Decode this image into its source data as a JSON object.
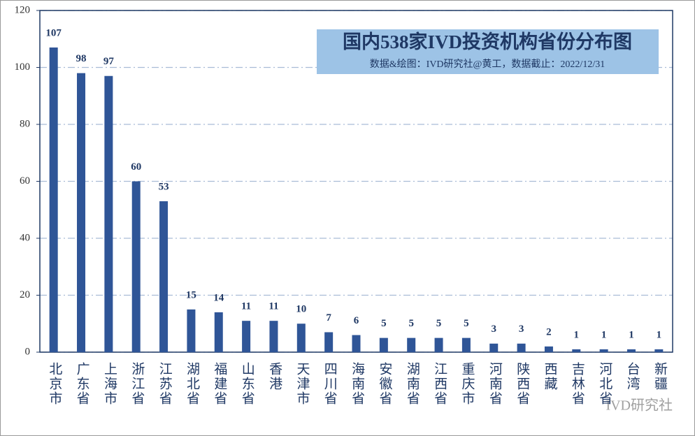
{
  "chart_data": {
    "type": "bar",
    "title": "国内538家IVD投资机构省份分布图",
    "subtitle": "数据&绘图：IVD研究社@黄工，数据截止：2022/12/31",
    "watermark": "IVD研究社",
    "categories": [
      "北京市",
      "广东省",
      "上海市",
      "浙江省",
      "江苏省",
      "湖北省",
      "福建省",
      "山东省",
      "香港",
      "天津市",
      "四川省",
      "海南省",
      "安徽省",
      "湖南省",
      "江西省",
      "重庆市",
      "河南省",
      "陕西省",
      "西藏",
      "吉林省",
      "河北省",
      "台湾",
      "新疆"
    ],
    "values": [
      107,
      98,
      97,
      60,
      53,
      15,
      14,
      11,
      11,
      10,
      7,
      6,
      5,
      5,
      5,
      5,
      3,
      3,
      2,
      1,
      1,
      1,
      1
    ],
    "color": "#2f5597",
    "ylim": [
      0,
      120
    ],
    "yticks": [
      0,
      20,
      40,
      60,
      80,
      100,
      120
    ],
    "grid": true
  }
}
